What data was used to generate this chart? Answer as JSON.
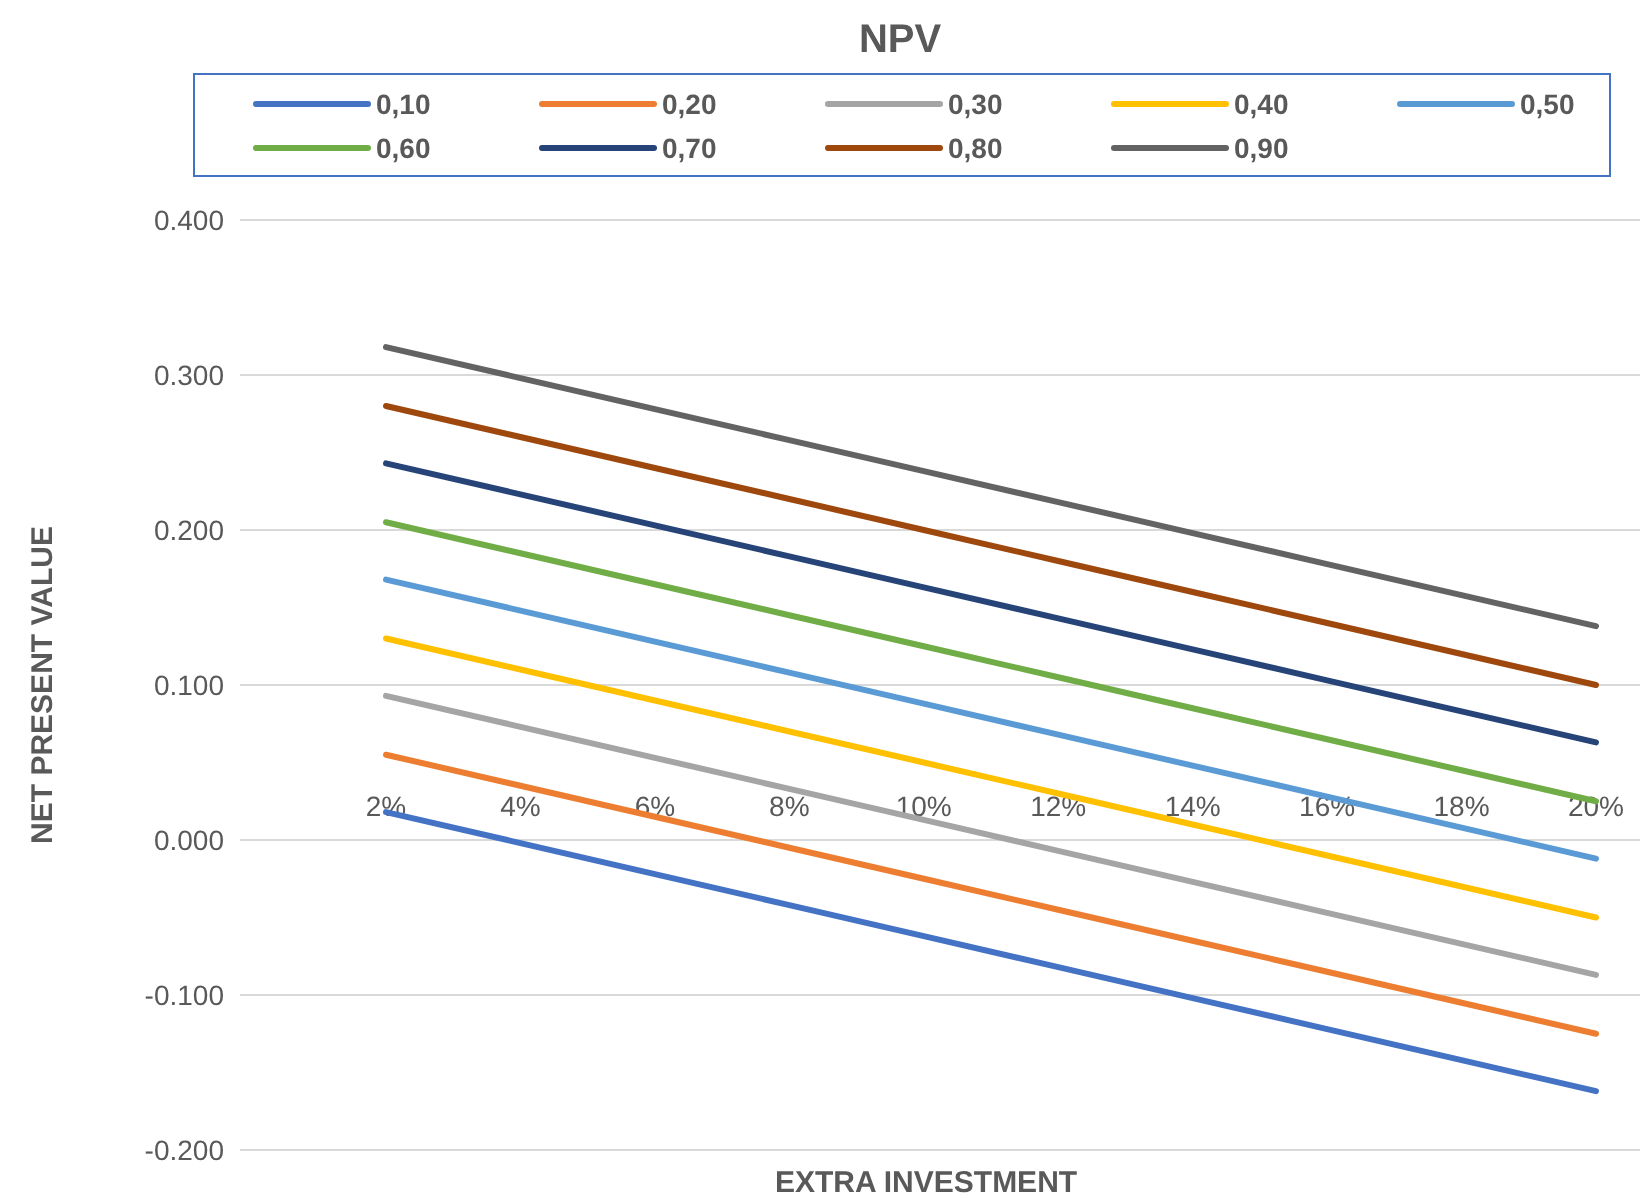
{
  "chart_data": {
    "type": "line",
    "title": "NPV",
    "xlabel": "EXTRA INVESTMENT",
    "ylabel": "NET PRESENT VALUE",
    "categories": [
      "2%",
      "4%",
      "6%",
      "8%",
      "10%",
      "12%",
      "14%",
      "16%",
      "18%",
      "20%"
    ],
    "ylim": [
      -0.2,
      0.4
    ],
    "yticks": [
      {
        "value": -0.2,
        "label": "-0.200"
      },
      {
        "value": -0.1,
        "label": "-0.100"
      },
      {
        "value": 0,
        "label": "0.000"
      },
      {
        "value": 0.1,
        "label": "0.100"
      },
      {
        "value": 0.2,
        "label": "0.200"
      },
      {
        "value": 0.3,
        "label": "0.300"
      },
      {
        "value": 0.4,
        "label": "0.400"
      }
    ],
    "grid": "y",
    "legend": "top",
    "marker": "none",
    "line_style": "solid",
    "series": [
      {
        "name": "0,10",
        "color": "#4472c4",
        "values": [
          0.018,
          -0.002,
          -0.022,
          -0.042,
          -0.062,
          -0.082,
          -0.102,
          -0.122,
          -0.142,
          -0.162
        ]
      },
      {
        "name": "0,20",
        "color": "#ed7d31",
        "values": [
          0.055,
          0.035,
          0.015,
          -0.005,
          -0.025,
          -0.045,
          -0.065,
          -0.085,
          -0.105,
          -0.125
        ]
      },
      {
        "name": "0,30",
        "color": "#a5a5a5",
        "values": [
          0.093,
          0.073,
          0.053,
          0.033,
          0.013,
          -0.007,
          -0.027,
          -0.047,
          -0.067,
          -0.087
        ]
      },
      {
        "name": "0,40",
        "color": "#ffc000",
        "values": [
          0.13,
          0.11,
          0.09,
          0.07,
          0.05,
          0.03,
          0.01,
          -0.01,
          -0.03,
          -0.05
        ]
      },
      {
        "name": "0,50",
        "color": "#5b9bd5",
        "values": [
          0.168,
          0.148,
          0.128,
          0.108,
          0.088,
          0.068,
          0.048,
          0.028,
          0.008,
          -0.012
        ]
      },
      {
        "name": "0,60",
        "color": "#70ad47",
        "values": [
          0.205,
          0.185,
          0.165,
          0.145,
          0.125,
          0.105,
          0.085,
          0.065,
          0.045,
          0.025
        ]
      },
      {
        "name": "0,70",
        "color": "#264478",
        "values": [
          0.243,
          0.223,
          0.203,
          0.183,
          0.163,
          0.143,
          0.123,
          0.103,
          0.083,
          0.063
        ]
      },
      {
        "name": "0,80",
        "color": "#9e480e",
        "values": [
          0.28,
          0.26,
          0.24,
          0.22,
          0.2,
          0.18,
          0.16,
          0.14,
          0.12,
          0.1
        ]
      },
      {
        "name": "0,90",
        "color": "#636363",
        "values": [
          0.318,
          0.298,
          0.278,
          0.258,
          0.238,
          0.218,
          0.198,
          0.178,
          0.158,
          0.138
        ]
      }
    ]
  }
}
